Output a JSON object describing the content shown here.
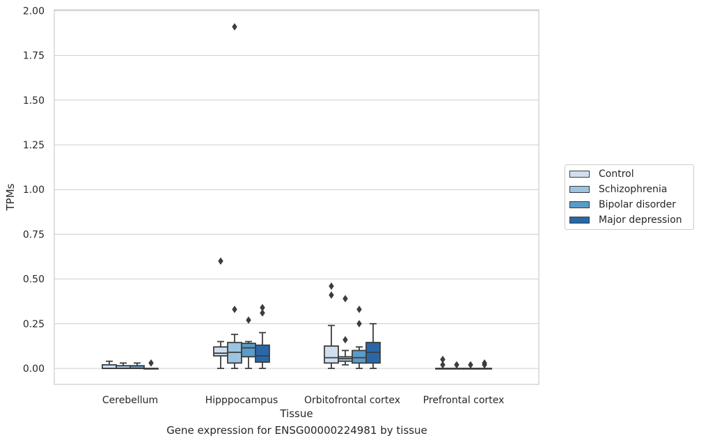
{
  "chart_data": {
    "type": "box",
    "title": "",
    "caption": "Gene expression for ENSG00000224981 by tissue",
    "xlabel": "Tissue",
    "ylabel": "TPMs",
    "ylim": [
      -0.09,
      2.0
    ],
    "yticks": [
      "0.00",
      "0.25",
      "0.50",
      "0.75",
      "1.00",
      "1.25",
      "1.50",
      "1.75",
      "2.00"
    ],
    "grid": true,
    "legend_position": "right",
    "categories": [
      "Cerebellum",
      "Hipppocampus",
      "Orbitofrontal cortex",
      "Prefrontal cortex"
    ],
    "series": [
      {
        "name": "Control",
        "color": "#d0deef",
        "boxes": [
          {
            "q1": 0.0,
            "median": 0.0,
            "q3": 0.02,
            "whisker_low": 0.0,
            "whisker_high": 0.04,
            "outliers": []
          },
          {
            "q1": 0.07,
            "median": 0.085,
            "q3": 0.12,
            "whisker_low": 0.0,
            "whisker_high": 0.15,
            "outliers": [
              0.6
            ]
          },
          {
            "q1": 0.03,
            "median": 0.06,
            "q3": 0.125,
            "whisker_low": 0.0,
            "whisker_high": 0.24,
            "outliers": [
              0.41,
              0.46
            ]
          },
          {
            "q1": 0.0,
            "median": 0.0,
            "q3": 0.0,
            "whisker_low": 0.0,
            "whisker_high": 0.0,
            "outliers": [
              0.02,
              0.05
            ]
          }
        ]
      },
      {
        "name": "Schizophrenia",
        "color": "#9dc4de",
        "boxes": [
          {
            "q1": 0.0,
            "median": 0.0,
            "q3": 0.015,
            "whisker_low": 0.0,
            "whisker_high": 0.03,
            "outliers": []
          },
          {
            "q1": 0.03,
            "median": 0.09,
            "q3": 0.145,
            "whisker_low": 0.0,
            "whisker_high": 0.19,
            "outliers": [
              0.33,
              1.91
            ]
          },
          {
            "q1": 0.04,
            "median": 0.055,
            "q3": 0.065,
            "whisker_low": 0.02,
            "whisker_high": 0.1,
            "outliers": [
              0.16,
              0.39
            ]
          },
          {
            "q1": 0.0,
            "median": 0.0,
            "q3": 0.0,
            "whisker_low": 0.0,
            "whisker_high": 0.0,
            "outliers": [
              0.02
            ]
          }
        ]
      },
      {
        "name": "Bipolar disorder",
        "color": "#5a9bc9",
        "boxes": [
          {
            "q1": 0.0,
            "median": 0.0,
            "q3": 0.015,
            "whisker_low": 0.0,
            "whisker_high": 0.03,
            "outliers": []
          },
          {
            "q1": 0.065,
            "median": 0.115,
            "q3": 0.14,
            "whisker_low": 0.0,
            "whisker_high": 0.15,
            "outliers": [
              0.27
            ]
          },
          {
            "q1": 0.03,
            "median": 0.06,
            "q3": 0.1,
            "whisker_low": 0.0,
            "whisker_high": 0.12,
            "outliers": [
              0.25,
              0.33
            ]
          },
          {
            "q1": 0.0,
            "median": 0.0,
            "q3": 0.0,
            "whisker_low": 0.0,
            "whisker_high": 0.0,
            "outliers": [
              0.02
            ]
          }
        ]
      },
      {
        "name": "Major depression",
        "color": "#2868a8",
        "boxes": [
          {
            "q1": 0.0,
            "median": 0.0,
            "q3": 0.0,
            "whisker_low": 0.0,
            "whisker_high": 0.0,
            "outliers": [
              0.03
            ]
          },
          {
            "q1": 0.035,
            "median": 0.07,
            "q3": 0.13,
            "whisker_low": 0.0,
            "whisker_high": 0.2,
            "outliers": [
              0.31,
              0.34
            ]
          },
          {
            "q1": 0.03,
            "median": 0.09,
            "q3": 0.145,
            "whisker_low": 0.0,
            "whisker_high": 0.25,
            "outliers": []
          },
          {
            "q1": 0.0,
            "median": 0.0,
            "q3": 0.0,
            "whisker_low": 0.0,
            "whisker_high": 0.0,
            "outliers": [
              0.02,
              0.03
            ]
          }
        ]
      }
    ]
  }
}
